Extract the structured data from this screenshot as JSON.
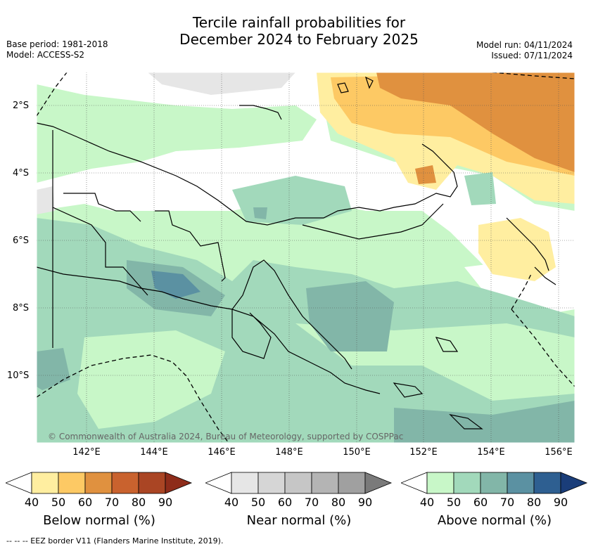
{
  "title_line1": "Tercile rainfall probabilities for",
  "title_line2": "December 2024 to February 2025",
  "base_period": "Base period: 1981-2018",
  "model": "Model: ACCESS-S2",
  "model_run": "Model run: 04/11/2024",
  "issued": "Issued: 07/11/2024",
  "credit": "© Commonwealth of Australia 2024, Bureau of Meteorology, supported by COSPPac",
  "footnote": "-- -- -- EEZ border V11 (Flanders Marine Institute, 2019).",
  "lat_ticks": [
    "2°S",
    "4°S",
    "6°S",
    "8°S",
    "10°S"
  ],
  "lon_ticks": [
    "142°E",
    "144°E",
    "146°E",
    "148°E",
    "150°E",
    "152°E",
    "154°E",
    "156°E"
  ],
  "legends": {
    "below": {
      "label": "Below normal (%)",
      "ticks": [
        "40",
        "50",
        "60",
        "70",
        "80",
        "90"
      ],
      "colors": [
        "#ffffff",
        "#ffeea0",
        "#fdc964",
        "#e0913f",
        "#c9622e",
        "#aa4524",
        "#8e2c1a"
      ]
    },
    "near": {
      "label": "Near normal (%)",
      "ticks": [
        "40",
        "50",
        "60",
        "70",
        "80",
        "90"
      ],
      "colors": [
        "#ffffff",
        "#e6e6e6",
        "#d6d6d6",
        "#c6c6c6",
        "#b4b4b4",
        "#a0a0a0",
        "#7a7a7a"
      ]
    },
    "above": {
      "label": "Above normal (%)",
      "ticks": [
        "40",
        "50",
        "60",
        "70",
        "80",
        "90"
      ],
      "colors": [
        "#ffffff",
        "#c8f7c8",
        "#a2d9bb",
        "#82b6a8",
        "#5b91a2",
        "#2e5f91",
        "#1a3d79"
      ]
    }
  }
}
